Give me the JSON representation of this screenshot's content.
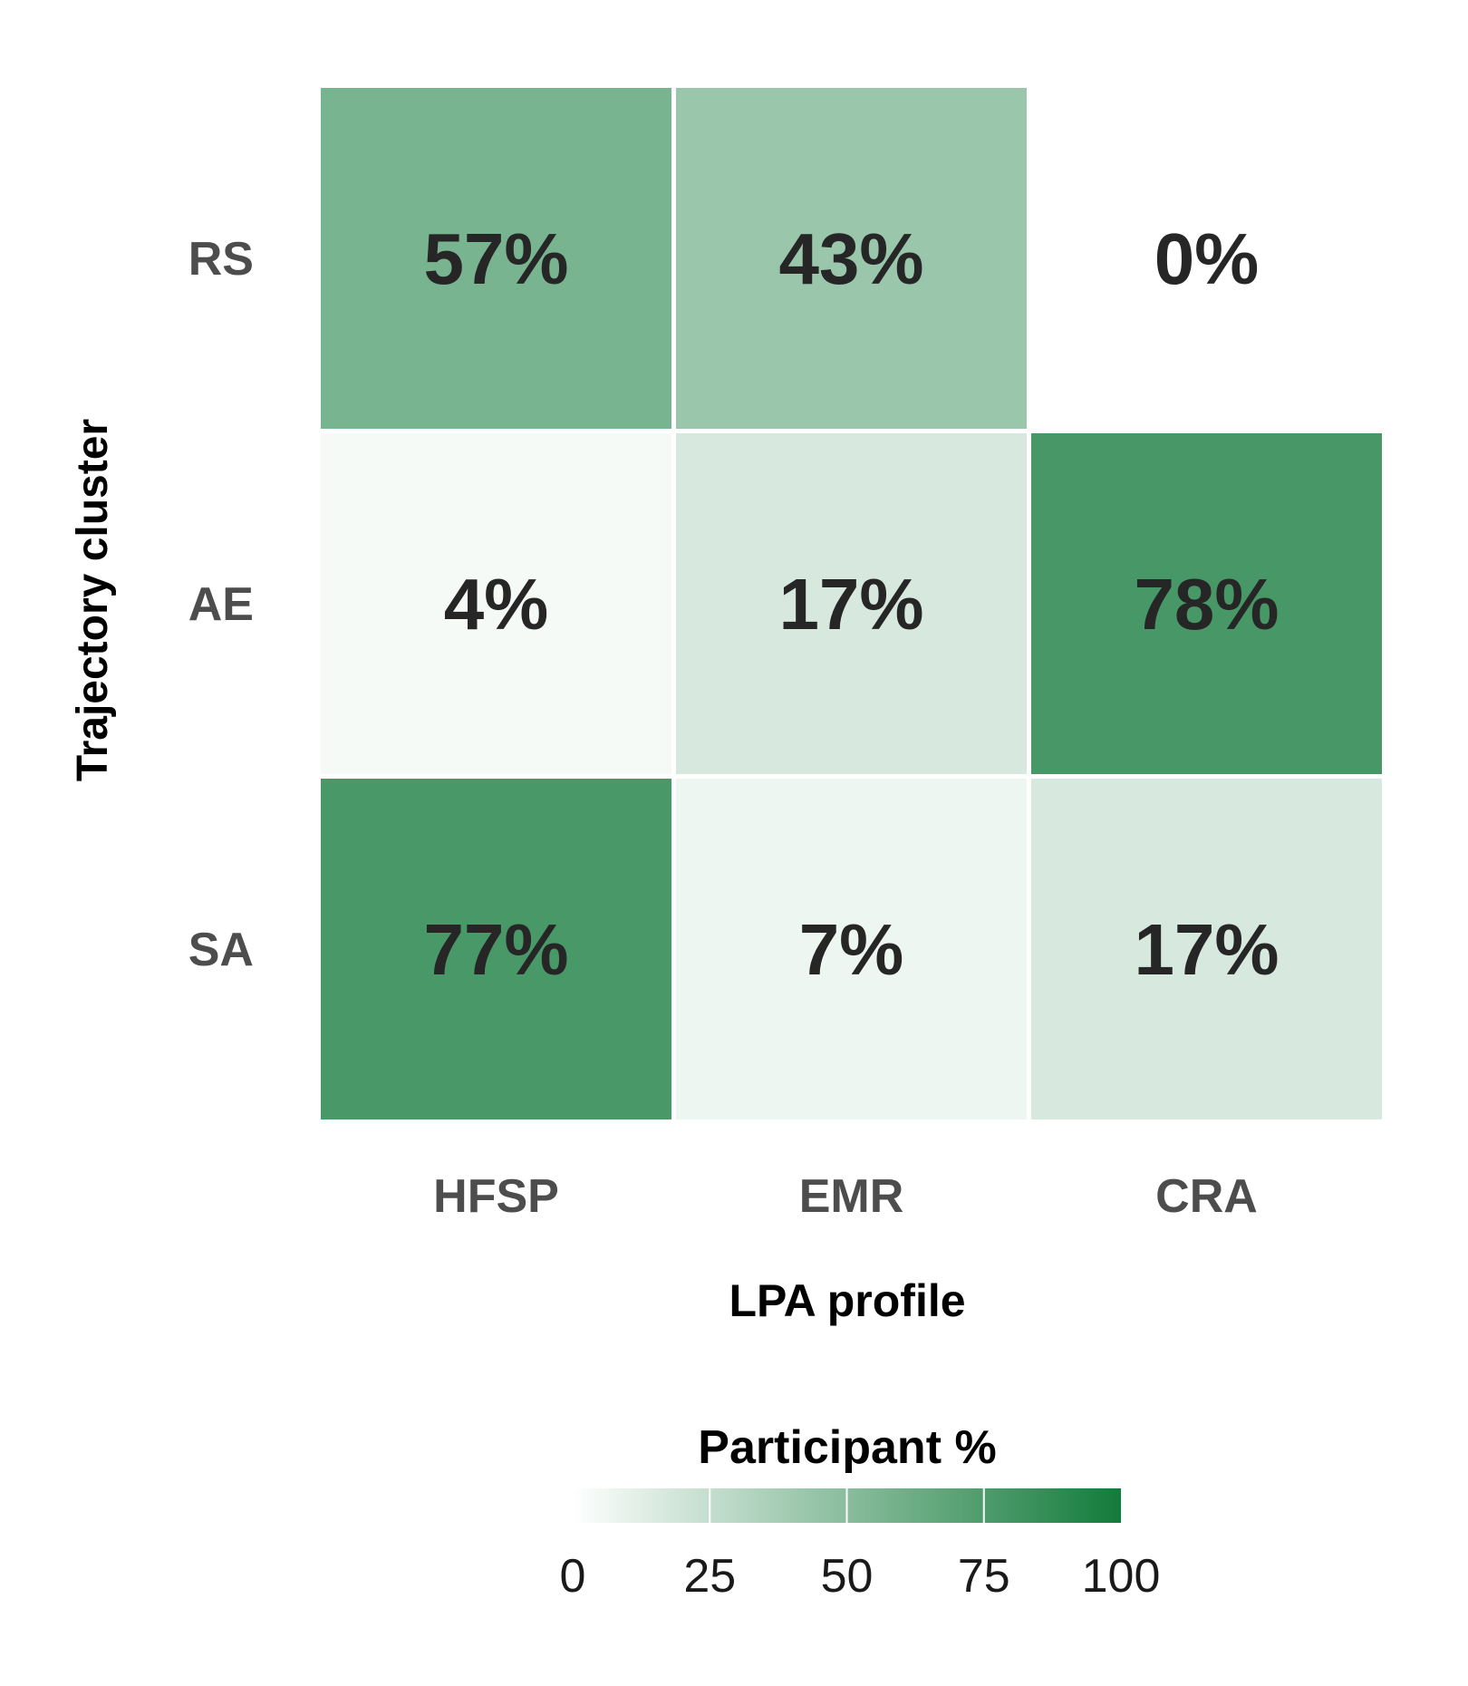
{
  "chart_data": {
    "type": "heatmap",
    "title": "",
    "xlabel": "LPA profile",
    "ylabel": "Trajectory cluster",
    "x_categories": [
      "HFSP",
      "EMR",
      "CRA"
    ],
    "y_categories": [
      "RS",
      "AE",
      "SA"
    ],
    "values": [
      [
        57,
        43,
        0
      ],
      [
        4,
        17,
        78
      ],
      [
        77,
        7,
        17
      ]
    ],
    "cell_labels": [
      [
        "57%",
        "43%",
        "0%"
      ],
      [
        "4%",
        "17%",
        "78%"
      ],
      [
        "77%",
        "7%",
        "17%"
      ]
    ],
    "legend": {
      "title": "Participant %",
      "range": [
        0,
        100
      ],
      "ticks": [
        0,
        25,
        50,
        75,
        100
      ],
      "tick_labels": [
        "0",
        "25",
        "50",
        "75",
        "100"
      ],
      "position": "bottom"
    },
    "colors": {
      "low": "#ffffff",
      "high": "#137b3b"
    }
  }
}
